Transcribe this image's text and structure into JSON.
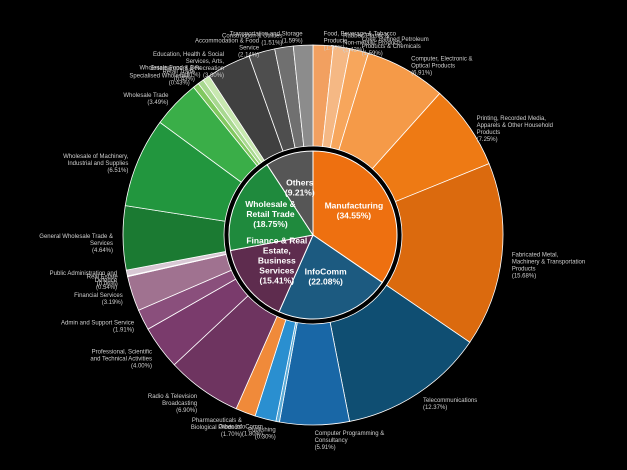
{
  "chart_data": {
    "type": "sunburst",
    "inner": [
      {
        "name": "Manufacturing",
        "label": "Manufacturing",
        "pct": "(34.55%)",
        "value": 34.55,
        "color": "#ee7010"
      },
      {
        "name": "InfoComm",
        "label": "InfoComm",
        "pct": "(22.08%)",
        "value": 22.08,
        "color": "#1c5a80"
      },
      {
        "name": "Finance, Real Estate, Business Services",
        "label": "Finance & Real Estate, Business Services",
        "pct": "(15.41%)",
        "value": 15.41,
        "color": "#5e2c4e"
      },
      {
        "name": "Wholesale & Retail Trade",
        "label": "Wholesale & Retail Trade",
        "pct": "(18.75%)",
        "value": 18.75,
        "color": "#1f8a3d"
      },
      {
        "name": "Others",
        "label": "Others",
        "pct": "(9.21%)",
        "value": 9.21,
        "color": "#565656"
      }
    ],
    "outer": [
      {
        "name": "Food, Beverage & Tobacco Products",
        "pct": "(1.70%)",
        "value": 1.7,
        "parent": 0,
        "color": "#f2a060"
      },
      {
        "name": "Rubber, Plastic & Non-metallic Products",
        "pct": "(1.42%)",
        "value": 1.42,
        "parent": 0,
        "color": "#f5b884"
      },
      {
        "name": "Coke, Refined Petroleum Products & Chemicals",
        "pct": "(1.59%)",
        "value": 1.59,
        "parent": 0,
        "color": "#f7a65c"
      },
      {
        "name": "Computer, Electronic & Optical Products",
        "pct": "(6.91%)",
        "value": 6.91,
        "parent": 0,
        "color": "#f59a48"
      },
      {
        "name": "Printing, Recorded Media, Apparels & Other Household Products",
        "pct": "(7.25%)",
        "value": 7.25,
        "parent": 0,
        "color": "#ee7a14"
      },
      {
        "name": "Fabricated Metal, Machinery & Transportation Products",
        "pct": "(15.68%)",
        "value": 15.68,
        "parent": 0,
        "color": "#db6a0e"
      },
      {
        "name": "Telecommunications",
        "pct": "(12.37%)",
        "value": 12.37,
        "parent": 1,
        "color": "#0f4e72"
      },
      {
        "name": "Computer Programming & Consultancy",
        "pct": "(5.91%)",
        "value": 5.91,
        "parent": 1,
        "color": "#1967a6"
      },
      {
        "name": "Publishing",
        "pct": "(0.30%)",
        "value": 0.3,
        "parent": 1,
        "color": "#5aaad6"
      },
      {
        "name": "Other InfoComm",
        "pct": "(1.80%)",
        "value": 1.8,
        "parent": 1,
        "color": "#2a8fd0"
      },
      {
        "name": "Pharmaceuticals & Biological Products",
        "pct": "(1.70%)",
        "value": 1.7,
        "parent": 1,
        "color": "#f08a3a"
      },
      {
        "name": "Radio & Television Broadcasting",
        "pct": "(6.90%)",
        "value": 6.9,
        "parent": 2,
        "color": "#6e3460"
      },
      {
        "name": "Professional, Scientific and Technical Activities",
        "pct": "(4.00%)",
        "value": 4.0,
        "parent": 2,
        "color": "#7a3b6c"
      },
      {
        "name": "Admin and Support Service",
        "pct": "(1.91%)",
        "value": 1.91,
        "parent": 2,
        "color": "#8a4f7c"
      },
      {
        "name": "Financial Services",
        "pct": "(3.19%)",
        "value": 3.19,
        "parent": 2,
        "color": "#a07290"
      },
      {
        "name": "Real Estate",
        "pct": "(0.06%)",
        "value": 0.06,
        "parent": 2,
        "color": "#c8aac0"
      },
      {
        "name": "Public Administration and Defence",
        "pct": "(0.54%)",
        "value": 0.54,
        "parent": 2,
        "color": "#d8c8d4"
      },
      {
        "name": "General Wholesale Trade & Services",
        "pct": "(4.64%)",
        "value": 4.64,
        "parent": 3,
        "color": "#1b7a32"
      },
      {
        "name": "Wholesale of Machinery, Industrial and Supplies",
        "pct": "(6.51%)",
        "value": 6.51,
        "parent": 3,
        "color": "#22963e"
      },
      {
        "name": "Wholesale Trade",
        "pct": "(3.49%)",
        "value": 3.49,
        "parent": 3,
        "color": "#3aae48"
      },
      {
        "name": "Specialised Wholesale",
        "pct": "(0.43%)",
        "value": 0.43,
        "parent": 3,
        "color": "#82c860"
      },
      {
        "name": "Retail Trade",
        "pct": "(0.43%)",
        "value": 0.43,
        "parent": 3,
        "color": "#a8d890"
      },
      {
        "name": "Wholesale Food & Bev",
        "pct": "(0.51%)",
        "value": 0.51,
        "parent": 3,
        "color": "#c8e8b0"
      },
      {
        "name": "Education, Health & Social Services, Arts, Entertainment & Recreation",
        "pct": "(3.60%)",
        "value": 3.6,
        "parent": 4,
        "color": "#404040"
      },
      {
        "name": "Accommodation & Food Service",
        "pct": "(2.14%)",
        "value": 2.14,
        "parent": 4,
        "color": "#4e4e4e"
      },
      {
        "name": "Construction & Utilities",
        "pct": "(1.51%)",
        "value": 1.51,
        "parent": 4,
        "color": "#707070"
      },
      {
        "name": "Transportation and Storage",
        "pct": "(1.59%)",
        "value": 1.59,
        "parent": 4,
        "color": "#8c8c8c"
      }
    ]
  }
}
